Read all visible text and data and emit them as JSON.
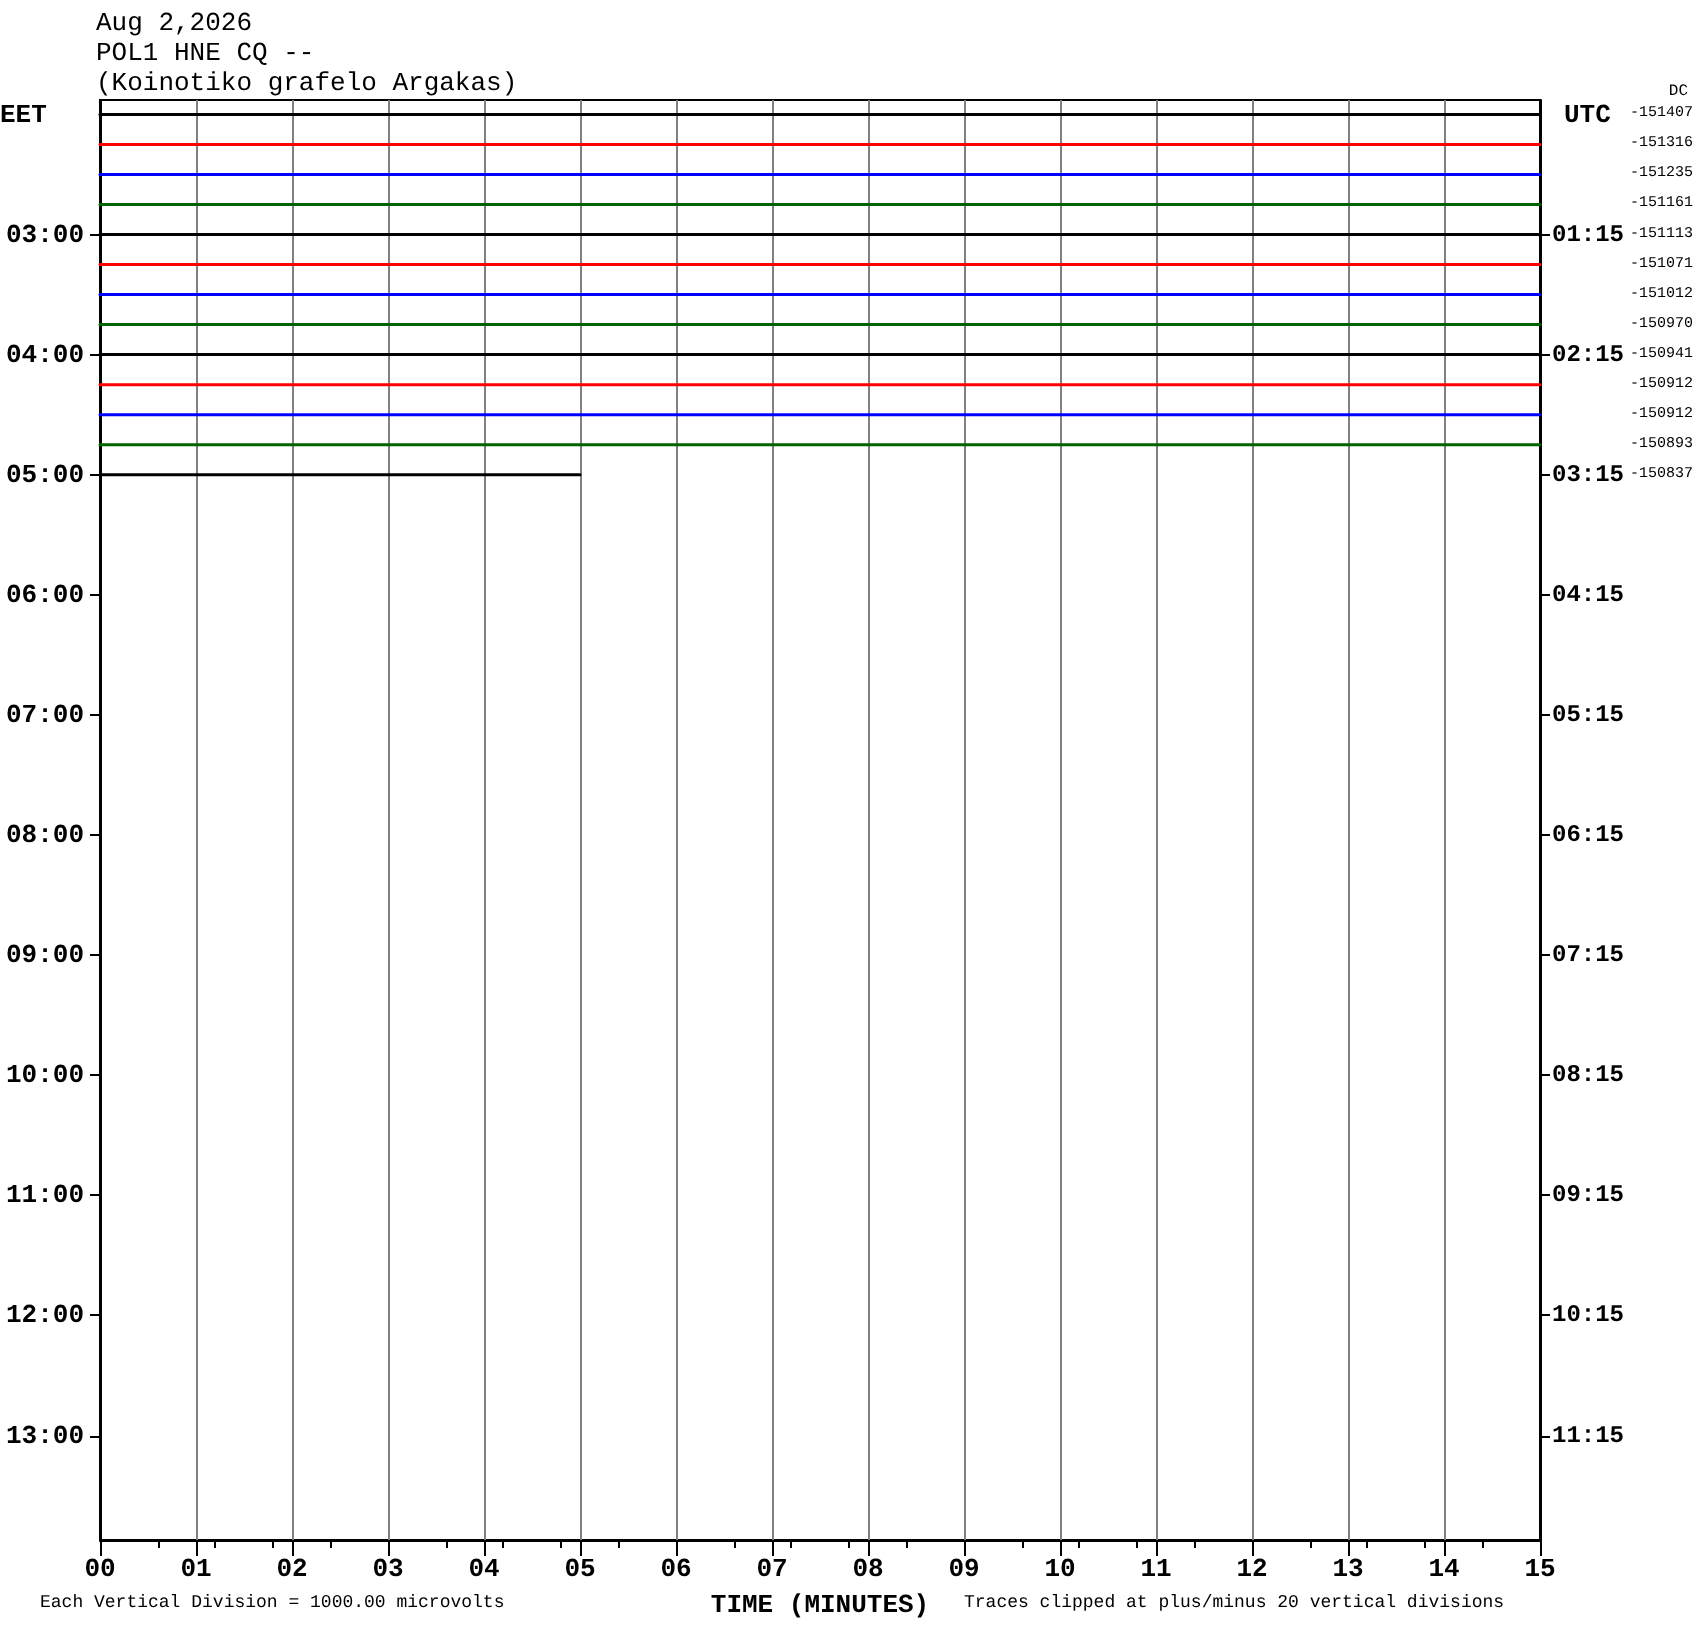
{
  "chart_data": {
    "type": "line",
    "title": "Aug 2,2026",
    "subtitle": "POL1 HNE CQ --\n(Koinotiko grafelo Argakas)",
    "xlabel": "TIME (MINUTES)",
    "ylabel": "EET",
    "y2label": "UTC",
    "xlim": [
      0,
      15
    ],
    "xticks": [
      {
        "value": 0,
        "label": "00"
      },
      {
        "value": 1,
        "label": "01"
      },
      {
        "value": 2,
        "label": "02"
      },
      {
        "value": 3,
        "label": "03"
      },
      {
        "value": 4,
        "label": "04"
      },
      {
        "value": 5,
        "label": "05"
      },
      {
        "value": 6,
        "label": "06"
      },
      {
        "value": 7,
        "label": "07"
      },
      {
        "value": 8,
        "label": "08"
      },
      {
        "value": 9,
        "label": "09"
      },
      {
        "value": 10,
        "label": "10"
      },
      {
        "value": 11,
        "label": "11"
      },
      {
        "value": 12,
        "label": "12"
      },
      {
        "value": 13,
        "label": "13"
      },
      {
        "value": 14,
        "label": "14"
      },
      {
        "value": 15,
        "label": "15"
      }
    ],
    "ylim": [
      13.87,
      1.88
    ],
    "yticks": [
      {
        "value": 3,
        "label": "03:00"
      },
      {
        "value": 4,
        "label": "04:00"
      },
      {
        "value": 5,
        "label": "05:00"
      },
      {
        "value": 6,
        "label": "06:00"
      },
      {
        "value": 7,
        "label": "07:00"
      },
      {
        "value": 8,
        "label": "08:00"
      },
      {
        "value": 9,
        "label": "09:00"
      },
      {
        "value": 10,
        "label": "10:00"
      },
      {
        "value": 11,
        "label": "11:00"
      },
      {
        "value": 12,
        "label": "12:00"
      },
      {
        "value": 13,
        "label": "13:00"
      }
    ],
    "y2lim": [
      12.12,
      0.13
    ],
    "y2ticks": [
      {
        "value": 1.25,
        "label": "01:15"
      },
      {
        "value": 2.25,
        "label": "02:15"
      },
      {
        "value": 3.25,
        "label": "03:15"
      },
      {
        "value": 4.25,
        "label": "04:15"
      },
      {
        "value": 5.25,
        "label": "05:15"
      },
      {
        "value": 6.25,
        "label": "06:15"
      },
      {
        "value": 7.25,
        "label": "07:15"
      },
      {
        "value": 8.25,
        "label": "08:15"
      },
      {
        "value": 9.25,
        "label": "09:15"
      },
      {
        "value": 10.25,
        "label": "10:15"
      },
      {
        "value": 11.25,
        "label": "11:15"
      }
    ],
    "grid": "x",
    "marker": "none",
    "line_style": "solid",
    "series": [
      {
        "color": "#000000",
        "x": [
          0,
          15
        ],
        "values": [
          2,
          2
        ]
      },
      {
        "color": "#ff0000",
        "x": [
          0,
          15
        ],
        "values": [
          2.25,
          2.25
        ]
      },
      {
        "color": "#0000ff",
        "x": [
          0,
          15
        ],
        "values": [
          2.5,
          2.5
        ]
      },
      {
        "color": "#006400",
        "x": [
          0,
          15
        ],
        "values": [
          2.75,
          2.75
        ]
      },
      {
        "color": "#000000",
        "x": [
          0,
          15
        ],
        "values": [
          3,
          3
        ]
      },
      {
        "color": "#ff0000",
        "x": [
          0,
          15
        ],
        "values": [
          3.25,
          3.25
        ]
      },
      {
        "color": "#0000ff",
        "x": [
          0,
          15
        ],
        "values": [
          3.5,
          3.5
        ]
      },
      {
        "color": "#006400",
        "x": [
          0,
          15
        ],
        "values": [
          3.75,
          3.75
        ]
      },
      {
        "color": "#000000",
        "x": [
          0,
          15
        ],
        "values": [
          4,
          4
        ]
      },
      {
        "color": "#ff0000",
        "x": [
          0,
          15
        ],
        "values": [
          4.25,
          4.25
        ]
      },
      {
        "color": "#0000ff",
        "x": [
          0,
          15
        ],
        "values": [
          4.5,
          4.5
        ]
      },
      {
        "color": "#006400",
        "x": [
          0,
          15
        ],
        "values": [
          4.75,
          4.75
        ]
      },
      {
        "color": "#000000",
        "x": [
          0,
          5
        ],
        "values": [
          5,
          5
        ]
      }
    ],
    "annotations": [
      "DC",
      "Each Vertical Division = 1000.00 microvolts",
      "Traces clipped at plus/minus 20 vertical divisions",
      "-151407",
      "-151316",
      "-151235",
      "-151161",
      "-151113",
      "-151071",
      "-151012",
      "-150970",
      "-150941",
      "-150912",
      "-150912",
      "-150893",
      "-150837"
    ]
  }
}
